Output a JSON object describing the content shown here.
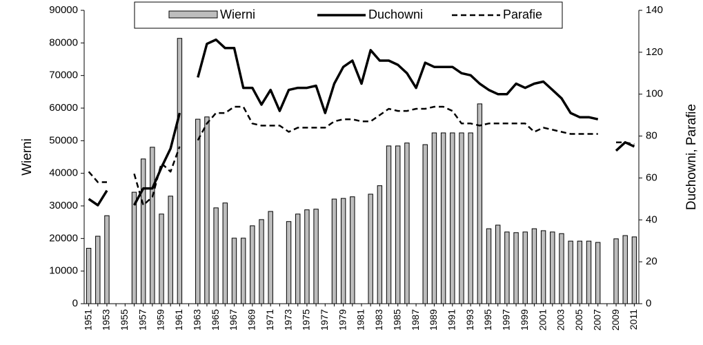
{
  "chart_data": {
    "type": "bar",
    "categories": [
      "1951",
      null,
      "1953",
      null,
      "1955",
      null,
      "1957",
      null,
      "1959",
      null,
      "1961",
      null,
      "1963",
      null,
      "1965",
      null,
      "1967",
      null,
      "1969",
      null,
      "1971",
      null,
      "1973",
      null,
      "1975",
      null,
      "1977",
      null,
      "1979",
      null,
      "1981",
      null,
      "1983",
      null,
      "1985",
      null,
      "1987",
      null,
      "1989",
      null,
      "1991",
      null,
      "1993",
      null,
      "1995",
      null,
      "1997",
      null,
      "1999",
      null,
      "2001",
      null,
      "2003",
      null,
      "2005",
      null,
      "2007",
      null,
      "2009",
      null,
      "2011"
    ],
    "y_label": "Wierni",
    "y2_label": "Duchowni, Parafie",
    "ylim": [
      0,
      90000
    ],
    "yticks": [
      0,
      10000,
      20000,
      30000,
      40000,
      50000,
      60000,
      70000,
      80000,
      90000
    ],
    "y2lim": [
      0,
      140
    ],
    "y2ticks": [
      0,
      20,
      40,
      60,
      80,
      100,
      120,
      140
    ],
    "series": [
      {
        "name": "Wierni",
        "type": "bar",
        "color": "#bdbdbd",
        "values": [
          17000,
          20700,
          27000,
          null,
          null,
          34200,
          44400,
          48000,
          27500,
          33000,
          81400,
          null,
          56600,
          57300,
          29400,
          30900,
          20100,
          20100,
          23900,
          25800,
          28300,
          null,
          25200,
          27500,
          28800,
          29000,
          null,
          32100,
          32300,
          32800,
          null,
          33600,
          36200,
          48400,
          48400,
          49300,
          null,
          48800,
          52400,
          52400,
          52400,
          52400,
          52400,
          61300,
          23000,
          24100,
          22000,
          21800,
          22000,
          23000,
          22400,
          22000,
          21500,
          19200,
          19200,
          19200,
          18800,
          null,
          19900,
          20900,
          20500
        ]
      },
      {
        "name": "Duchowni",
        "type": "line",
        "axis": "y2",
        "color": "#000000",
        "dashed": false,
        "values": [
          50,
          47,
          54,
          null,
          null,
          47,
          55,
          55,
          65,
          74,
          91,
          null,
          108,
          124,
          126,
          122,
          122,
          103,
          103,
          95,
          102,
          92,
          102,
          103,
          103,
          104,
          91,
          105,
          113,
          116,
          105,
          121,
          116,
          116,
          114,
          110,
          103,
          115,
          113,
          113,
          113,
          110,
          109,
          105,
          102,
          100,
          100,
          105,
          103,
          105,
          106,
          102,
          98,
          91,
          89,
          89,
          88,
          null,
          73,
          77,
          75
        ]
      },
      {
        "name": "Parafie",
        "type": "line",
        "axis": "y2",
        "color": "#000000",
        "dashed": true,
        "values": [
          63,
          58,
          58,
          null,
          null,
          62,
          47,
          51,
          67,
          63,
          75,
          null,
          78,
          86,
          91,
          91,
          94,
          94,
          86,
          85,
          85,
          85,
          82,
          84,
          84,
          84,
          84,
          87,
          88,
          88,
          87,
          87,
          90,
          93,
          92,
          92,
          93,
          93,
          94,
          94,
          92,
          86,
          86,
          85,
          86,
          86,
          86,
          86,
          86,
          82,
          84,
          83,
          82,
          81,
          81,
          81,
          81,
          null,
          77,
          77,
          76
        ]
      }
    ]
  }
}
